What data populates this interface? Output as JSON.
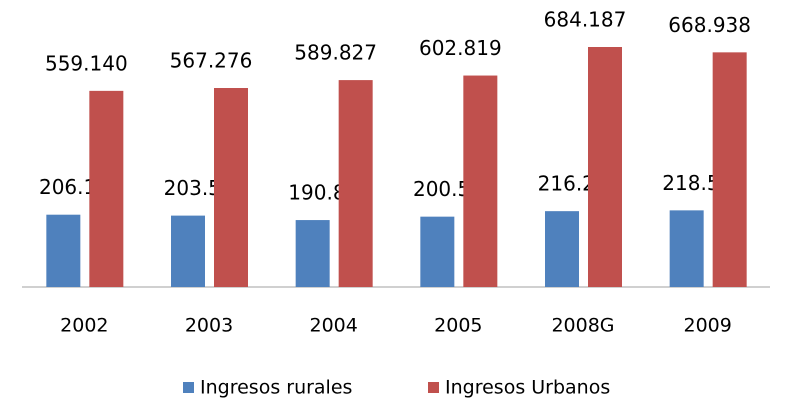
{
  "chart_data": {
    "type": "bar",
    "categories": [
      "2002",
      "2003",
      "2004",
      "2005",
      "2008G",
      "2009"
    ],
    "series": [
      {
        "name": "Ingresos rurales",
        "color": "#4f81bd",
        "values": [
          206131,
          203515,
          190807,
          200541,
          216210,
          218505
        ],
        "value_labels": [
          "206.131",
          "203.515",
          "190.807",
          "200.541",
          "216.210",
          "218.505"
        ]
      },
      {
        "name": "Ingresos Urbanos",
        "color": "#c0504d",
        "values": [
          559140,
          567276,
          589827,
          602819,
          684187,
          668938
        ],
        "value_labels": [
          "559.140",
          "567.276",
          "589.827",
          "602.819",
          "684.187",
          "668.938"
        ]
      }
    ],
    "legend": "bottom"
  }
}
